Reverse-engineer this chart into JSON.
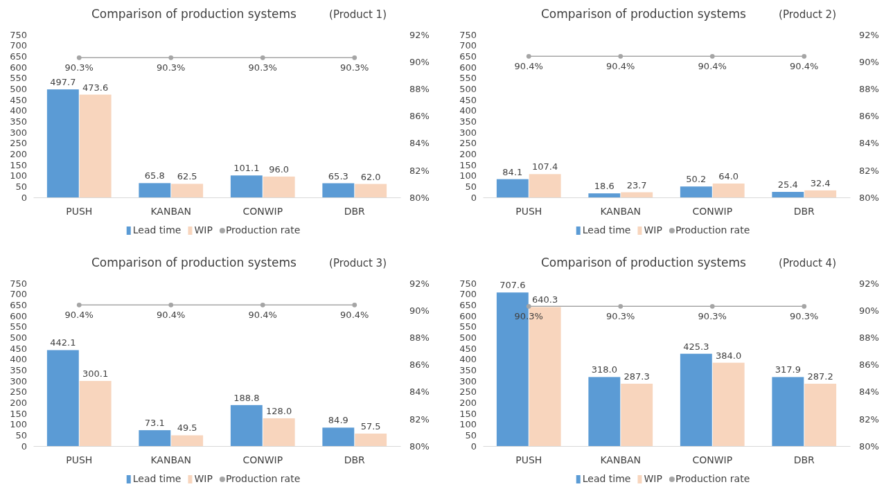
{
  "chart_data": [
    {
      "type": "bar",
      "title": "Comparison of production systems",
      "subtitle": "(Product 1)",
      "categories": [
        "PUSH",
        "KANBAN",
        "CONWIP",
        "DBR"
      ],
      "ylim": [
        0,
        750
      ],
      "yticks": [
        0,
        50,
        100,
        150,
        200,
        250,
        300,
        350,
        400,
        450,
        500,
        550,
        600,
        650,
        700,
        750
      ],
      "y2lim": [
        80,
        92
      ],
      "y2ticks": [
        {
          "value": 80,
          "label": "80%"
        },
        {
          "value": 82,
          "label": "82%"
        },
        {
          "value": 84,
          "label": "84%"
        },
        {
          "value": 86,
          "label": "86%"
        },
        {
          "value": 88,
          "label": "88%"
        },
        {
          "value": 90,
          "label": "90%"
        },
        {
          "value": 92,
          "label": "92%"
        }
      ],
      "legend": "bottom",
      "marker": "circle",
      "line_style": "solid",
      "series": [
        {
          "name": "Lead time",
          "color": "#5b9bd5",
          "values": [
            497.7,
            65.8,
            101.1,
            65.3
          ],
          "value_labels": [
            "497.7",
            "65.8",
            "101.1",
            "65.3"
          ]
        },
        {
          "name": "WIP",
          "color": "#f8d5bd",
          "values": [
            473.6,
            62.5,
            96.0,
            62.0
          ],
          "value_labels": [
            "473.6",
            "62.5",
            "96.0",
            "62.0"
          ]
        },
        {
          "name": "Production rate",
          "type": "line",
          "axis": "y2",
          "color": "#a5a5a5",
          "values": [
            90.3,
            90.3,
            90.3,
            90.3
          ],
          "value_labels": [
            "90.3%",
            "90.3%",
            "90.3%",
            "90.3%"
          ]
        }
      ]
    },
    {
      "type": "bar",
      "title": "Comparison of production systems",
      "subtitle": "(Product 2)",
      "categories": [
        "PUSH",
        "KANBAN",
        "CONWIP",
        "DBR"
      ],
      "ylim": [
        0,
        750
      ],
      "yticks": [
        0,
        50,
        100,
        150,
        200,
        250,
        300,
        350,
        400,
        450,
        500,
        550,
        600,
        650,
        700,
        750
      ],
      "y2lim": [
        80,
        92
      ],
      "y2ticks": [
        {
          "value": 80,
          "label": "80%"
        },
        {
          "value": 82,
          "label": "82%"
        },
        {
          "value": 84,
          "label": "84%"
        },
        {
          "value": 86,
          "label": "86%"
        },
        {
          "value": 88,
          "label": "88%"
        },
        {
          "value": 90,
          "label": "90%"
        },
        {
          "value": 92,
          "label": "92%"
        }
      ],
      "legend": "bottom",
      "marker": "circle",
      "line_style": "solid",
      "series": [
        {
          "name": "Lead time",
          "color": "#5b9bd5",
          "values": [
            84.1,
            18.6,
            50.2,
            25.4
          ],
          "value_labels": [
            "84.1",
            "18.6",
            "50.2",
            "25.4"
          ]
        },
        {
          "name": "WIP",
          "color": "#f8d5bd",
          "values": [
            107.4,
            23.7,
            64.0,
            32.4
          ],
          "value_labels": [
            "107.4",
            "23.7",
            "64.0",
            "32.4"
          ]
        },
        {
          "name": "Production rate",
          "type": "line",
          "axis": "y2",
          "color": "#a5a5a5",
          "values": [
            90.4,
            90.4,
            90.4,
            90.4
          ],
          "value_labels": [
            "90.4%",
            "90.4%",
            "90.4%",
            "90.4%"
          ]
        }
      ]
    },
    {
      "type": "bar",
      "title": "Comparison of production systems",
      "subtitle": "(Product 3)",
      "categories": [
        "PUSH",
        "KANBAN",
        "CONWIP",
        "DBR"
      ],
      "ylim": [
        0,
        750
      ],
      "yticks": [
        0,
        50,
        100,
        150,
        200,
        250,
        300,
        350,
        400,
        450,
        500,
        550,
        600,
        650,
        700,
        750
      ],
      "y2lim": [
        80,
        92
      ],
      "y2ticks": [
        {
          "value": 80,
          "label": "80%"
        },
        {
          "value": 82,
          "label": "82%"
        },
        {
          "value": 84,
          "label": "84%"
        },
        {
          "value": 86,
          "label": "86%"
        },
        {
          "value": 88,
          "label": "88%"
        },
        {
          "value": 90,
          "label": "90%"
        },
        {
          "value": 92,
          "label": "92%"
        }
      ],
      "legend": "bottom",
      "marker": "circle",
      "line_style": "solid",
      "series": [
        {
          "name": "Lead time",
          "color": "#5b9bd5",
          "values": [
            442.1,
            73.1,
            188.8,
            84.9
          ],
          "value_labels": [
            "442.1",
            "73.1",
            "188.8",
            "84.9"
          ]
        },
        {
          "name": "WIP",
          "color": "#f8d5bd",
          "values": [
            300.1,
            49.5,
            128.0,
            57.5
          ],
          "value_labels": [
            "300.1",
            "49.5",
            "128.0",
            "57.5"
          ]
        },
        {
          "name": "Production rate",
          "type": "line",
          "axis": "y2",
          "color": "#a5a5a5",
          "values": [
            90.4,
            90.4,
            90.4,
            90.4
          ],
          "value_labels": [
            "90.4%",
            "90.4%",
            "90.4%",
            "90.4%"
          ]
        }
      ]
    },
    {
      "type": "bar",
      "title": "Comparison of production systems",
      "subtitle": "(Product 4)",
      "categories": [
        "PUSH",
        "KANBAN",
        "CONWIP",
        "DBR"
      ],
      "ylim": [
        0,
        750
      ],
      "yticks": [
        0,
        50,
        100,
        150,
        200,
        250,
        300,
        350,
        400,
        450,
        500,
        550,
        600,
        650,
        700,
        750
      ],
      "y2lim": [
        80,
        92
      ],
      "y2ticks": [
        {
          "value": 80,
          "label": "80%"
        },
        {
          "value": 82,
          "label": "82%"
        },
        {
          "value": 84,
          "label": "84%"
        },
        {
          "value": 86,
          "label": "86%"
        },
        {
          "value": 88,
          "label": "88%"
        },
        {
          "value": 90,
          "label": "90%"
        },
        {
          "value": 92,
          "label": "92%"
        }
      ],
      "legend": "bottom",
      "marker": "circle",
      "line_style": "solid",
      "series": [
        {
          "name": "Lead time",
          "color": "#5b9bd5",
          "values": [
            707.6,
            318.0,
            425.3,
            317.9
          ],
          "value_labels": [
            "707.6",
            "318.0",
            "425.3",
            "317.9"
          ]
        },
        {
          "name": "WIP",
          "color": "#f8d5bd",
          "values": [
            640.3,
            287.3,
            384.0,
            287.2
          ],
          "value_labels": [
            "640.3",
            "287.3",
            "384.0",
            "287.2"
          ]
        },
        {
          "name": "Production rate",
          "type": "line",
          "axis": "y2",
          "color": "#a5a5a5",
          "values": [
            90.3,
            90.3,
            90.3,
            90.3
          ],
          "value_labels": [
            "90.3%",
            "90.3%",
            "90.3%",
            "90.3%"
          ]
        }
      ]
    }
  ]
}
